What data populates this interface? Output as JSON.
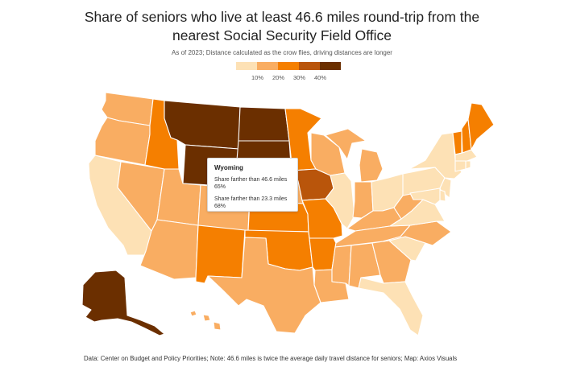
{
  "title_line1": "Share of seniors who live at least 46.6 miles round-trip from the",
  "title_line2": "nearest Social Security Field Office",
  "subtitle": "As of 2023; Distance calculated as the crow flies, driving distances are longer",
  "legend": {
    "colors": [
      "#fde1b5",
      "#f9ad62",
      "#f57f00",
      "#b9550b",
      "#6b2f00"
    ],
    "labels": [
      "10%",
      "20%",
      "30%",
      "40%"
    ]
  },
  "tooltip": {
    "state": "Wyoming",
    "label1": "Share farther than 46.6 miles",
    "value1": "65%",
    "label2": "Share farther than 23.3 miles",
    "value2": "68%"
  },
  "footer": "Data: Center on Budget and Policy Priorities; Note: 46.6 miles is twice the average daily travel distance for seniors; Map: Axios Visuals",
  "state_fills": {
    "WA": "#f9ad62",
    "OR": "#f9ad62",
    "CA": "#fde1b5",
    "ID": "#f57f00",
    "NV": "#f9ad62",
    "UT": "#f9ad62",
    "AZ": "#f9ad62",
    "MT": "#6b2f00",
    "WY": "#6b2f00",
    "CO": "#f9ad62",
    "NM": "#f57f00",
    "ND": "#6b2f00",
    "SD": "#6b2f00",
    "NE": "#f9ad62",
    "KS": "#f57f00",
    "OK": "#f57f00",
    "TX": "#f9ad62",
    "MN": "#f57f00",
    "IA": "#b9550b",
    "MO": "#f57f00",
    "AR": "#f57f00",
    "LA": "#f9ad62",
    "WI": "#f9ad62",
    "IL": "#fde1b5",
    "MI": "#f9ad62",
    "IN": "#f9ad62",
    "OH": "#fde1b5",
    "KY": "#f9ad62",
    "TN": "#f9ad62",
    "MS": "#f9ad62",
    "AL": "#f9ad62",
    "GA": "#f9ad62",
    "FL": "#fde1b5",
    "SC": "#fde1b5",
    "NC": "#f9ad62",
    "VA": "#fde1b5",
    "WV": "#f9ad62",
    "PA": "#fde1b5",
    "NY": "#fde1b5",
    "VT": "#f57f00",
    "NH": "#f57f00",
    "ME": "#f57f00",
    "MA": "#fde1b5",
    "CT": "#fde1b5",
    "RI": "#fde1b5",
    "NJ": "#fde1b5",
    "DE": "#fde1b5",
    "MD": "#fde1b5",
    "AK": "#6b2f00",
    "HI": "#f9ad62"
  }
}
